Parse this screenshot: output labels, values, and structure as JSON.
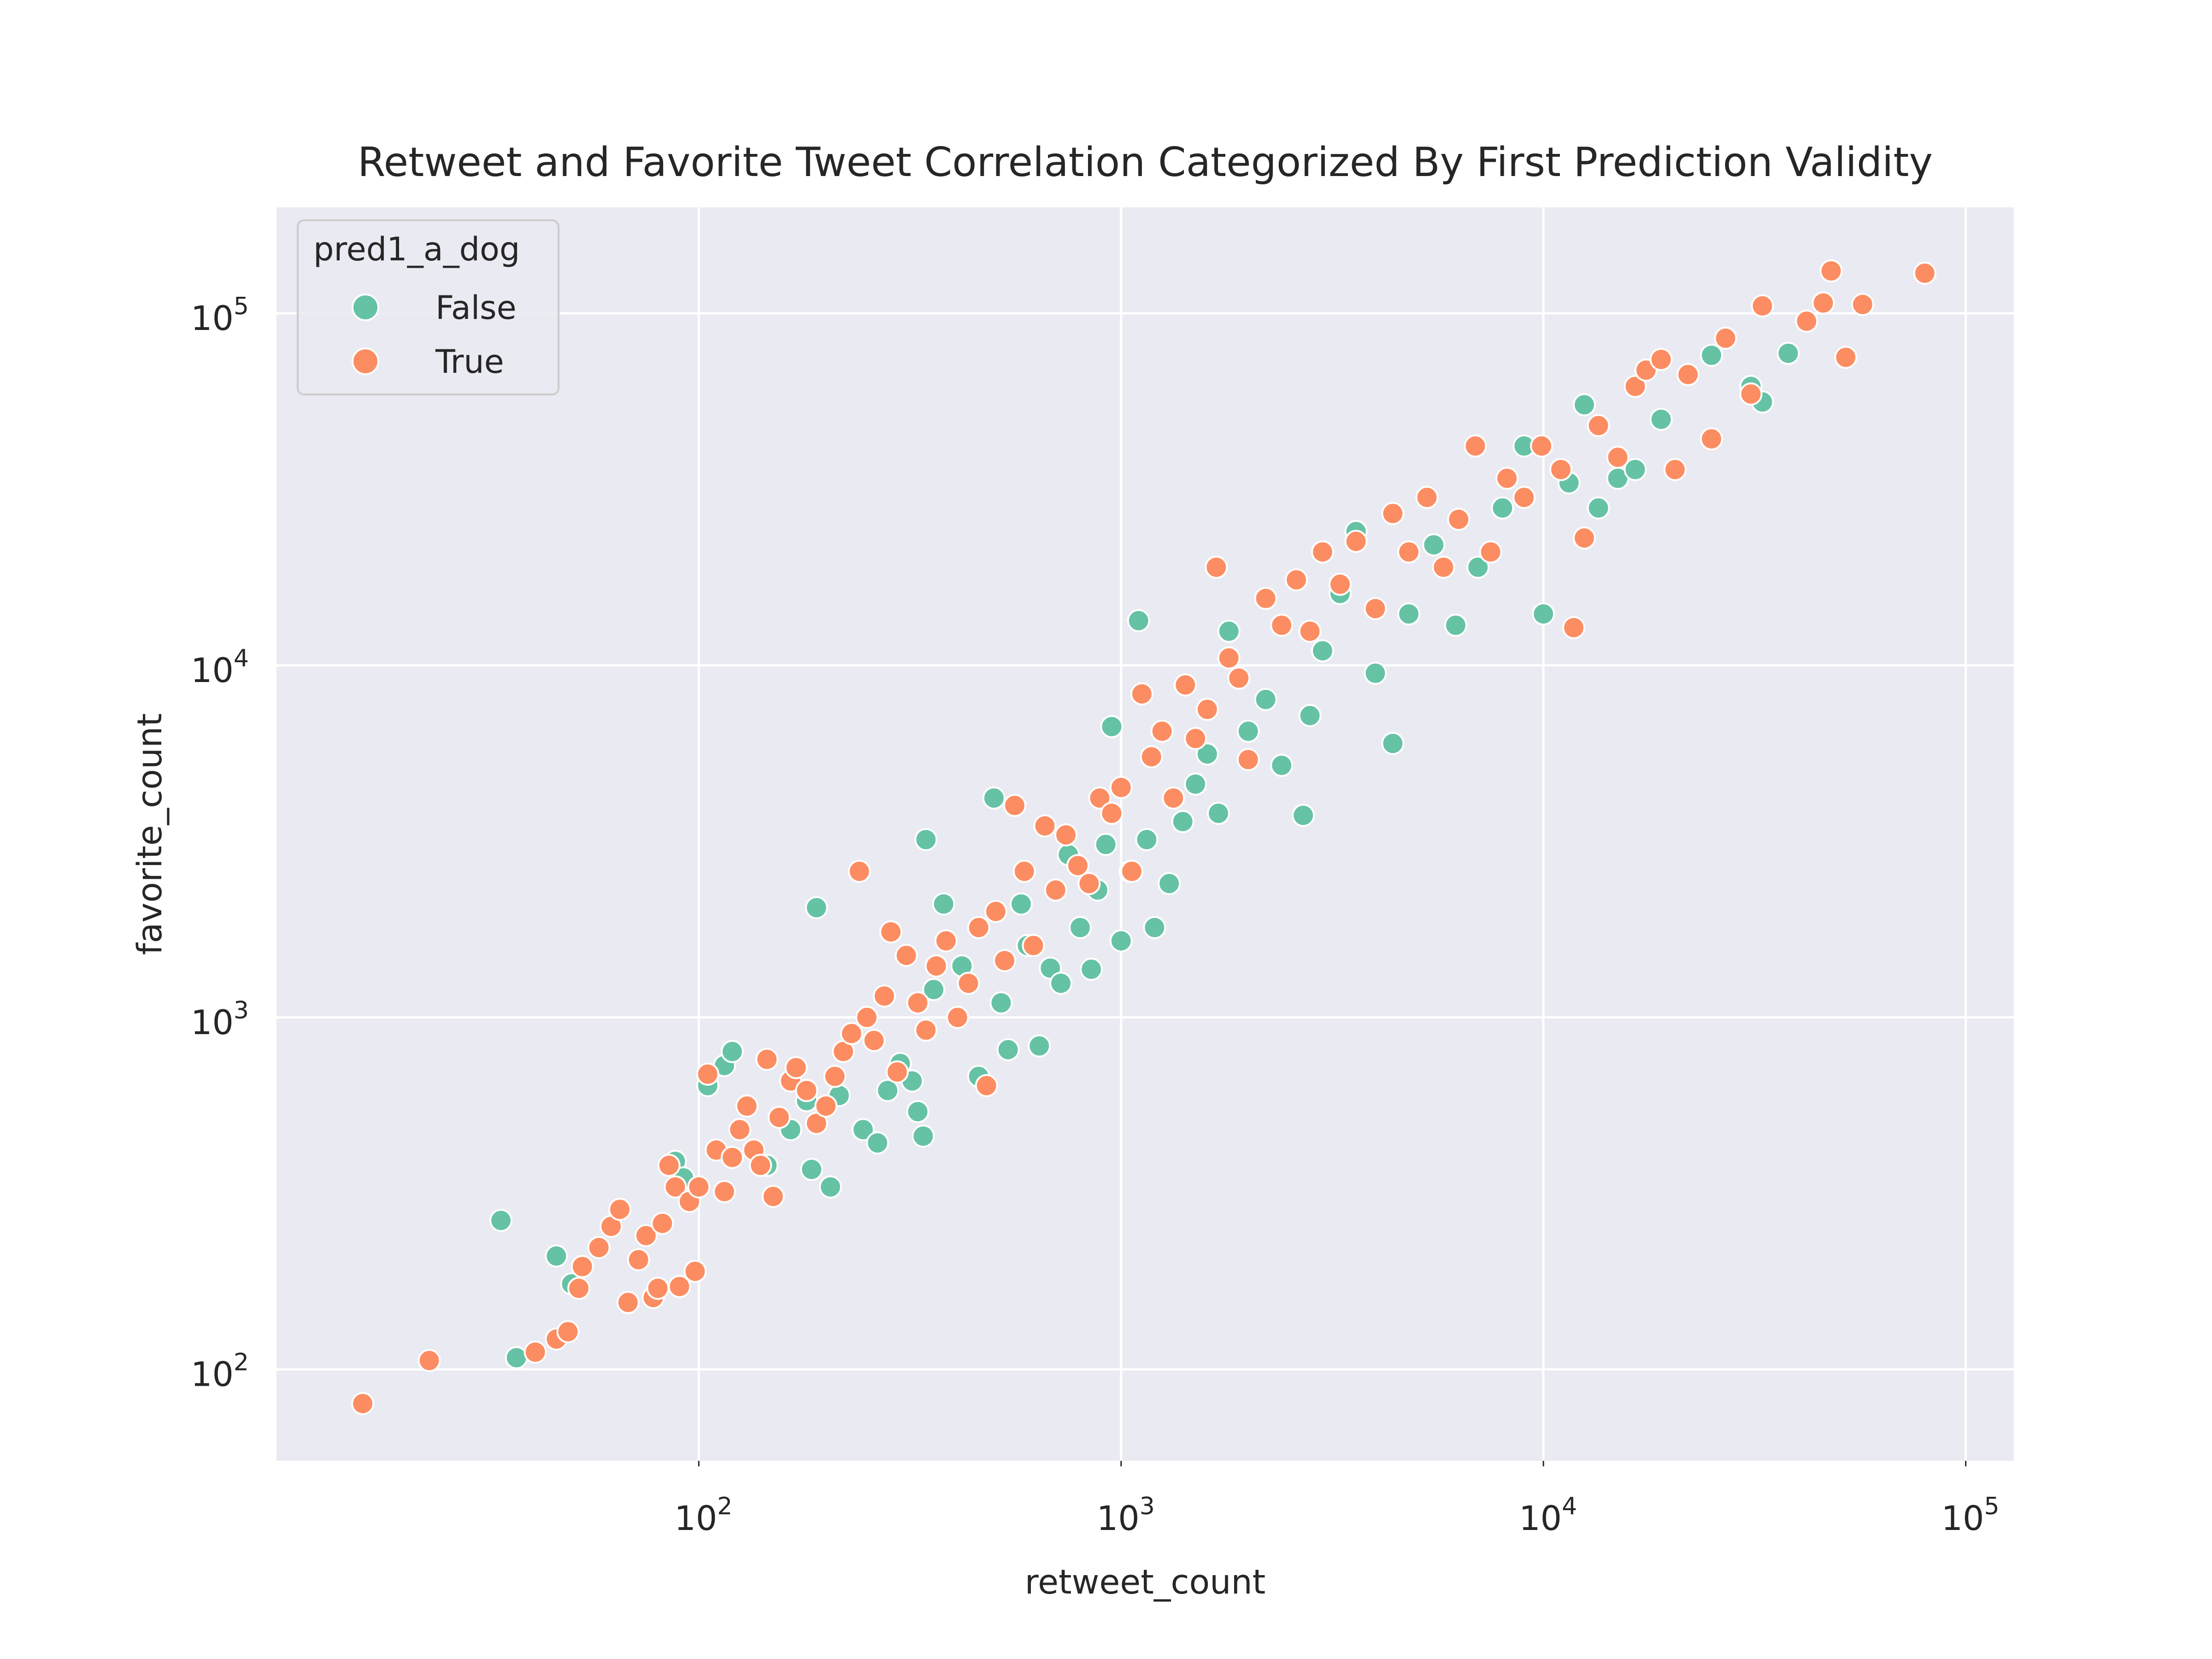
{
  "chart_data": {
    "type": "scatter",
    "title": "Retweet and Favorite Tweet Correlation Categorized By First Prediction Validity",
    "xlabel": "retweet_count",
    "ylabel": "favorite_count",
    "xscale": "log",
    "yscale": "log",
    "xlim": [
      10,
      130000
    ],
    "ylim": [
      55,
      200000
    ],
    "xticks": [
      100,
      1000,
      10000,
      100000
    ],
    "yticks": [
      100,
      1000,
      10000,
      100000
    ],
    "tick_base": "10",
    "x_tick_exponents": [
      "2",
      "3",
      "4",
      "5"
    ],
    "y_tick_exponents": [
      "2",
      "3",
      "4",
      "5"
    ],
    "grid": true,
    "legend": {
      "title": "pred1_a_dog",
      "position": "top-left"
    },
    "series": [
      {
        "name": "False",
        "color": "#66c2a5",
        "points": [
          [
            34,
            265
          ],
          [
            37,
            108
          ],
          [
            46,
            210
          ],
          [
            50,
            175
          ],
          [
            88,
            390
          ],
          [
            92,
            350
          ],
          [
            105,
            640
          ],
          [
            115,
            730
          ],
          [
            120,
            800
          ],
          [
            145,
            380
          ],
          [
            165,
            480
          ],
          [
            180,
            580
          ],
          [
            185,
            370
          ],
          [
            190,
            2050
          ],
          [
            205,
            330
          ],
          [
            215,
            600
          ],
          [
            245,
            480
          ],
          [
            265,
            440
          ],
          [
            280,
            620
          ],
          [
            300,
            740
          ],
          [
            320,
            660
          ],
          [
            330,
            540
          ],
          [
            340,
            460
          ],
          [
            345,
            3200
          ],
          [
            360,
            1200
          ],
          [
            380,
            2100
          ],
          [
            420,
            1400
          ],
          [
            460,
            680
          ],
          [
            500,
            4200
          ],
          [
            520,
            1100
          ],
          [
            540,
            810
          ],
          [
            580,
            2100
          ],
          [
            600,
            1600
          ],
          [
            640,
            830
          ],
          [
            680,
            1380
          ],
          [
            720,
            1250
          ],
          [
            750,
            2900
          ],
          [
            800,
            1800
          ],
          [
            850,
            1370
          ],
          [
            880,
            2300
          ],
          [
            920,
            3100
          ],
          [
            950,
            6700
          ],
          [
            1000,
            1650
          ],
          [
            1050,
            2600
          ],
          [
            1100,
            13400
          ],
          [
            1150,
            3200
          ],
          [
            1200,
            1800
          ],
          [
            1300,
            2400
          ],
          [
            1400,
            3600
          ],
          [
            1500,
            4600
          ],
          [
            1600,
            5600
          ],
          [
            1700,
            3800
          ],
          [
            1800,
            12500
          ],
          [
            2000,
            6500
          ],
          [
            2200,
            8000
          ],
          [
            2400,
            5200
          ],
          [
            2700,
            3750
          ],
          [
            2800,
            7200
          ],
          [
            3000,
            11000
          ],
          [
            3300,
            16000
          ],
          [
            3600,
            24000
          ],
          [
            4000,
            9500
          ],
          [
            4400,
            6000
          ],
          [
            4800,
            14000
          ],
          [
            5500,
            22000
          ],
          [
            6200,
            13000
          ],
          [
            7000,
            19000
          ],
          [
            8000,
            28000
          ],
          [
            9000,
            42000
          ],
          [
            10000,
            14000
          ],
          [
            11500,
            33000
          ],
          [
            12500,
            55000
          ],
          [
            13500,
            28000
          ],
          [
            15000,
            34000
          ],
          [
            16500,
            36000
          ],
          [
            19000,
            50000
          ],
          [
            25000,
            76000
          ],
          [
            31000,
            62000
          ],
          [
            33000,
            56000
          ],
          [
            38000,
            77000
          ]
        ]
      },
      {
        "name": "True",
        "color": "#fc8d62",
        "points": [
          [
            16,
            80
          ],
          [
            23,
            106
          ],
          [
            41,
            112
          ],
          [
            46,
            122
          ],
          [
            49,
            128
          ],
          [
            52,
            170
          ],
          [
            53,
            196
          ],
          [
            58,
            222
          ],
          [
            62,
            255
          ],
          [
            65,
            285
          ],
          [
            68,
            155
          ],
          [
            72,
            205
          ],
          [
            75,
            240
          ],
          [
            78,
            160
          ],
          [
            80,
            170
          ],
          [
            82,
            260
          ],
          [
            85,
            380
          ],
          [
            88,
            330
          ],
          [
            90,
            172
          ],
          [
            95,
            300
          ],
          [
            98,
            190
          ],
          [
            100,
            330
          ],
          [
            105,
            690
          ],
          [
            110,
            420
          ],
          [
            115,
            320
          ],
          [
            120,
            400
          ],
          [
            125,
            480
          ],
          [
            130,
            560
          ],
          [
            135,
            420
          ],
          [
            140,
            380
          ],
          [
            145,
            760
          ],
          [
            150,
            310
          ],
          [
            155,
            520
          ],
          [
            165,
            660
          ],
          [
            170,
            720
          ],
          [
            180,
            620
          ],
          [
            190,
            500
          ],
          [
            200,
            560
          ],
          [
            210,
            680
          ],
          [
            220,
            800
          ],
          [
            230,
            900
          ],
          [
            240,
            2600
          ],
          [
            250,
            1000
          ],
          [
            260,
            860
          ],
          [
            275,
            1150
          ],
          [
            285,
            1750
          ],
          [
            295,
            700
          ],
          [
            310,
            1500
          ],
          [
            330,
            1100
          ],
          [
            345,
            920
          ],
          [
            365,
            1400
          ],
          [
            385,
            1650
          ],
          [
            410,
            1000
          ],
          [
            435,
            1250
          ],
          [
            460,
            1800
          ],
          [
            480,
            640
          ],
          [
            505,
            2000
          ],
          [
            530,
            1450
          ],
          [
            560,
            4000
          ],
          [
            590,
            2600
          ],
          [
            620,
            1600
          ],
          [
            660,
            3500
          ],
          [
            700,
            2300
          ],
          [
            740,
            3300
          ],
          [
            790,
            2700
          ],
          [
            840,
            2400
          ],
          [
            890,
            4200
          ],
          [
            950,
            3800
          ],
          [
            1000,
            4500
          ],
          [
            1060,
            2600
          ],
          [
            1120,
            8300
          ],
          [
            1180,
            5500
          ],
          [
            1250,
            6500
          ],
          [
            1330,
            4200
          ],
          [
            1420,
            8800
          ],
          [
            1500,
            6200
          ],
          [
            1600,
            7500
          ],
          [
            1680,
            19000
          ],
          [
            1800,
            10500
          ],
          [
            1900,
            9200
          ],
          [
            2000,
            5400
          ],
          [
            2200,
            15500
          ],
          [
            2400,
            13000
          ],
          [
            2600,
            17500
          ],
          [
            2800,
            12500
          ],
          [
            3000,
            21000
          ],
          [
            3300,
            17000
          ],
          [
            3600,
            22500
          ],
          [
            4000,
            14500
          ],
          [
            4400,
            27000
          ],
          [
            4800,
            21000
          ],
          [
            5300,
            30000
          ],
          [
            5800,
            19000
          ],
          [
            6300,
            26000
          ],
          [
            6900,
            42000
          ],
          [
            7500,
            21000
          ],
          [
            8200,
            34000
          ],
          [
            9000,
            30000
          ],
          [
            9900,
            42000
          ],
          [
            11000,
            36000
          ],
          [
            11800,
            12800
          ],
          [
            12500,
            23000
          ],
          [
            13500,
            48000
          ],
          [
            15000,
            39000
          ],
          [
            16500,
            62000
          ],
          [
            17500,
            69000
          ],
          [
            19000,
            74000
          ],
          [
            20500,
            36000
          ],
          [
            22000,
            67000
          ],
          [
            25000,
            44000
          ],
          [
            27000,
            85000
          ],
          [
            31000,
            59000
          ],
          [
            33000,
            105000
          ],
          [
            42000,
            95000
          ],
          [
            46000,
            107000
          ],
          [
            48000,
            132000
          ],
          [
            52000,
            75000
          ],
          [
            57000,
            106000
          ],
          [
            80000,
            130000
          ]
        ]
      }
    ]
  }
}
